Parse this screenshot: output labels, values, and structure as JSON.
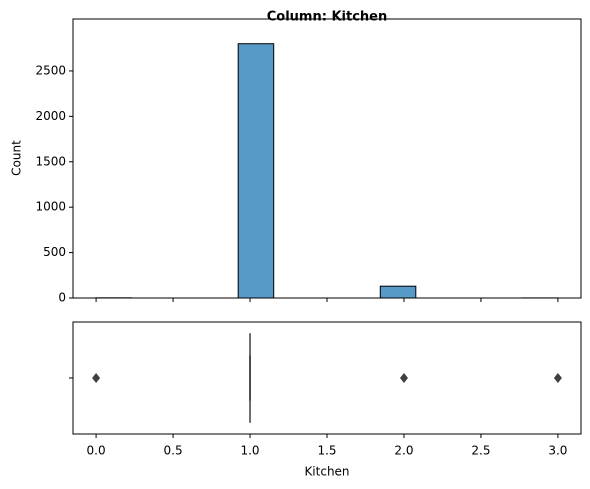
{
  "chart_data": [
    {
      "type": "histogram",
      "title": "Column: Kitchen",
      "ylabel": "Count",
      "bins": [
        0,
        0.230769,
        0.461538,
        0.692308,
        0.923077,
        1.153846,
        1.384615,
        1.615385,
        1.846154,
        2.076923,
        2.307692,
        2.538462,
        2.769231,
        3
      ],
      "counts": [
        2,
        0,
        0,
        0,
        2800,
        0,
        0,
        0,
        130,
        0,
        0,
        0,
        1
      ],
      "color": "#5799c7",
      "xlim": [
        -0.15,
        3.15
      ],
      "ylim": [
        0,
        3072
      ],
      "yticks": [
        0,
        500,
        1000,
        1500,
        2000,
        2500
      ]
    },
    {
      "type": "box",
      "xlabel": "Kitchen",
      "xlim": [
        -0.15,
        3.15
      ],
      "xticks": [
        {
          "value": 0,
          "label": "0.0"
        },
        {
          "value": 0.5,
          "label": "0.5"
        },
        {
          "value": 1,
          "label": "1.0"
        },
        {
          "value": 1.5,
          "label": "1.5"
        },
        {
          "value": 2,
          "label": "2.0"
        },
        {
          "value": 2.5,
          "label": "2.5"
        },
        {
          "value": 3,
          "label": "3.0"
        }
      ],
      "whislo": 1,
      "q1": 1,
      "median": 1,
      "q3": 1,
      "whishi": 1,
      "outliers": [
        0,
        2,
        3
      ],
      "color": "#3f3f3f"
    }
  ]
}
